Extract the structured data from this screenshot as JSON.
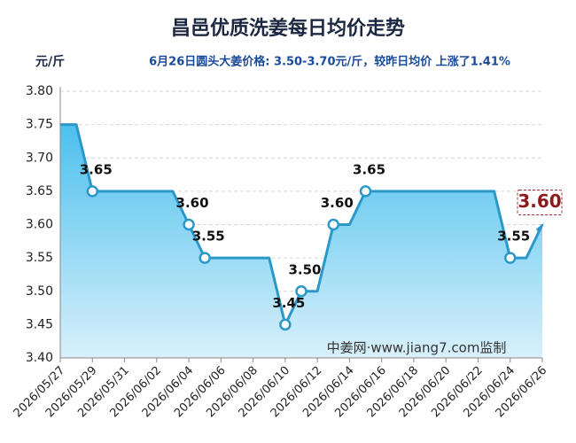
{
  "chart_data": {
    "type": "line",
    "title": "昌邑优质洗姜每日均价走势",
    "y_label": "元/斤",
    "subtitle": "6月26日圆头大姜价格: 3.50-3.70元/斤，较昨日均价 上涨了1.41%",
    "watermark": "中姜网·www.jiang7.com监制",
    "categories": [
      "2026/05/27",
      null,
      "2026/05/29",
      null,
      "2026/05/31",
      null,
      "2026/06/02",
      null,
      "2026/06/04",
      null,
      "2026/06/06",
      null,
      "2026/06/08",
      null,
      "2026/06/10",
      null,
      "2026/06/12",
      null,
      "2026/06/14",
      null,
      "2026/06/16",
      null,
      "2026/06/18",
      null,
      "2026/06/20",
      null,
      "2026/06/22",
      null,
      "2026/06/24",
      null,
      "2026/06/26"
    ],
    "values": [
      3.75,
      3.75,
      3.65,
      3.65,
      3.65,
      3.65,
      3.65,
      3.65,
      3.6,
      3.55,
      3.55,
      3.55,
      3.55,
      3.55,
      3.45,
      3.5,
      3.5,
      3.6,
      3.6,
      3.65,
      3.65,
      3.65,
      3.65,
      3.65,
      3.65,
      3.65,
      3.65,
      3.65,
      3.55,
      3.55,
      3.6
    ],
    "value_labels": [
      null,
      null,
      "3.65",
      null,
      null,
      null,
      null,
      null,
      "3.60",
      "3.55",
      null,
      null,
      null,
      null,
      "3.45",
      "3.50",
      null,
      "3.60",
      null,
      "3.65",
      null,
      null,
      null,
      null,
      null,
      null,
      null,
      null,
      "3.55",
      null,
      "3.60"
    ],
    "color": "#2a98c8",
    "fill_color": "#5cc6ef",
    "ylim": [
      3.4,
      3.8
    ],
    "yticks": [
      {
        "value": 3.4,
        "label": "3.40"
      },
      {
        "value": 3.45,
        "label": "3.45"
      },
      {
        "value": 3.5,
        "label": "3.50"
      },
      {
        "value": 3.55,
        "label": "3.55"
      },
      {
        "value": 3.6,
        "label": "3.60"
      },
      {
        "value": 3.65,
        "label": "3.65"
      },
      {
        "value": 3.7,
        "label": "3.70"
      },
      {
        "value": 3.75,
        "label": "3.75"
      },
      {
        "value": 3.8,
        "label": "3.80"
      }
    ],
    "grid": true
  }
}
